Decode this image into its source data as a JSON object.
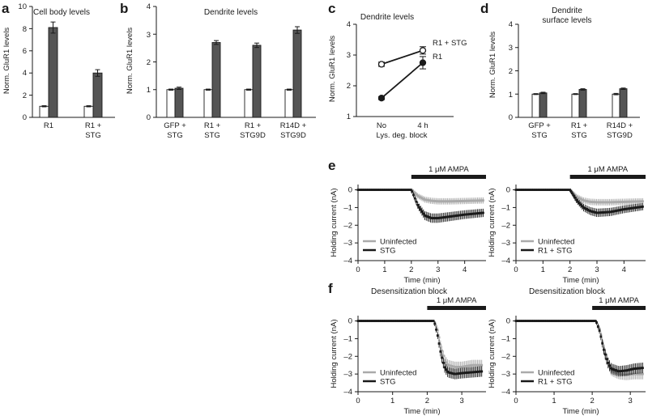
{
  "colors": {
    "dark": "#555555",
    "black": "#1a1a1a",
    "gray": "#aaaaaa",
    "white": "#ffffff"
  },
  "panels": {
    "a": {
      "letter": "a",
      "title": "Cell body levels",
      "ylabel": "Norm. GluR1 levels",
      "yticks": [
        "0",
        "2",
        "4",
        "6",
        "8",
        "10"
      ]
    },
    "b": {
      "letter": "b",
      "title": "Dendrite levels",
      "ylabel": "Norm. GluR1 levels",
      "yticks": [
        "0",
        "1",
        "2",
        "3",
        "4"
      ]
    },
    "c": {
      "letter": "c",
      "title": "Dendrite levels",
      "ylabel": "Norm. GluR1 levels",
      "yticks": [
        "1",
        "2",
        "3",
        "4"
      ],
      "xlabel": "Lys. deg. block"
    },
    "d": {
      "letter": "d",
      "title1": "Dendrite",
      "title2": "surface levels",
      "ylabel": "Norm. GluR1 levels",
      "yticks": [
        "0",
        "1",
        "2",
        "3",
        "4"
      ]
    },
    "e": {
      "letter": "e",
      "bar_label": "1 μM AMPA",
      "ylabel": "Holding current (nA)",
      "xlabel": "Time (min)",
      "yticks": [
        "0",
        "–1",
        "–2",
        "–3",
        "–4"
      ],
      "xticks": [
        "0",
        "1",
        "2",
        "3",
        "4"
      ]
    },
    "f": {
      "letter": "f",
      "title": "Desensitization block",
      "bar_label": "1 μM AMPA",
      "ylabel": "Holding current (nA)",
      "xlabel": "Time (min)",
      "yticks": [
        "0",
        "–1",
        "–2",
        "–3",
        "–4"
      ],
      "xticks": [
        "0",
        "1",
        "2",
        "3"
      ]
    }
  },
  "chart_data": [
    {
      "panel": "a",
      "type": "bar",
      "title": "Cell body levels",
      "ylabel": "Norm. GluR1 levels",
      "ylim": [
        0,
        10
      ],
      "categories": [
        [
          "R1"
        ],
        [
          "R1 +",
          "STG"
        ]
      ],
      "series": [
        {
          "values": [
            1.0,
            1.0
          ],
          "errors": [
            0.05,
            0.05
          ]
        },
        {
          "values": [
            8.1,
            4.0
          ],
          "errors": [
            0.5,
            0.3
          ]
        }
      ]
    },
    {
      "panel": "b",
      "type": "bar",
      "title": "Dendrite levels",
      "ylabel": "Norm. GluR1 levels",
      "ylim": [
        0,
        4
      ],
      "categories": [
        [
          "GFP +",
          "STG"
        ],
        [
          "R1 +",
          "STG"
        ],
        [
          "R1 +",
          "STG9D"
        ],
        [
          "R14D +",
          "STG9D"
        ]
      ],
      "series": [
        {
          "values": [
            1.0,
            1.0,
            1.0,
            1.0
          ],
          "errors": [
            0.02,
            0.02,
            0.02,
            0.02
          ]
        },
        {
          "values": [
            1.05,
            2.7,
            2.6,
            3.15
          ],
          "errors": [
            0.04,
            0.07,
            0.08,
            0.12
          ]
        }
      ]
    },
    {
      "panel": "c",
      "type": "line",
      "title": "Dendrite levels",
      "ylabel": "Norm. GluR1 levels",
      "xlabel": "Lys. deg. block",
      "ylim": [
        1,
        4
      ],
      "categories": [
        "No",
        "4 h"
      ],
      "series": [
        {
          "name": "R1 + STG",
          "values": [
            2.7,
            3.15
          ],
          "errors": [
            0.07,
            0.12
          ]
        },
        {
          "name": "R1",
          "values": [
            1.6,
            2.75
          ],
          "errors": [
            0.05,
            0.2
          ]
        }
      ]
    },
    {
      "panel": "d",
      "type": "bar",
      "title": "Dendrite surface levels",
      "ylabel": "Norm. GluR1 levels",
      "ylim": [
        0,
        4
      ],
      "categories": [
        [
          "GFP +",
          "STG"
        ],
        [
          "R1 +",
          "STG"
        ],
        [
          "R14D +",
          "STG9D"
        ]
      ],
      "series": [
        {
          "values": [
            1.0,
            1.0,
            1.0
          ],
          "errors": [
            0.02,
            0.02,
            0.03
          ]
        },
        {
          "values": [
            1.05,
            1.2,
            1.23
          ],
          "errors": [
            0.03,
            0.03,
            0.03
          ]
        }
      ]
    },
    {
      "panel": "e-left",
      "type": "scatter",
      "xlabel": "Time (min)",
      "ylabel": "Holding current (nA)",
      "xlim": [
        0,
        4.8
      ],
      "ylim": [
        -4,
        0.3
      ],
      "ampa_start": 2.0,
      "ampa_end": 4.8,
      "series": [
        {
          "name": "Uninfected",
          "x": [
            0,
            2.0,
            2.25,
            2.5,
            2.75,
            3.0,
            3.5,
            4.0,
            4.7
          ],
          "y": [
            0,
            0,
            -0.35,
            -0.55,
            -0.62,
            -0.65,
            -0.65,
            -0.63,
            -0.6
          ]
        },
        {
          "name": "STG",
          "x": [
            0,
            2.0,
            2.25,
            2.5,
            2.75,
            3.0,
            3.5,
            4.0,
            4.7
          ],
          "y": [
            0,
            0,
            -0.9,
            -1.45,
            -1.6,
            -1.6,
            -1.5,
            -1.4,
            -1.3
          ]
        }
      ]
    },
    {
      "panel": "e-right",
      "type": "scatter",
      "xlabel": "Time (min)",
      "ylabel": "Holding current (nA)",
      "xlim": [
        0,
        4.8
      ],
      "ylim": [
        -4,
        0.3
      ],
      "ampa_start": 2.0,
      "ampa_end": 4.8,
      "series": [
        {
          "name": "Uninfected",
          "x": [
            0,
            2.0,
            2.25,
            2.5,
            2.75,
            3.0,
            3.5,
            4.0,
            4.7
          ],
          "y": [
            0,
            0,
            -0.4,
            -0.6,
            -0.68,
            -0.7,
            -0.7,
            -0.68,
            -0.65
          ]
        },
        {
          "name": "R1 + STG",
          "x": [
            0,
            2.0,
            2.25,
            2.5,
            2.75,
            3.0,
            3.5,
            4.0,
            4.7
          ],
          "y": [
            0,
            0,
            -0.6,
            -1.0,
            -1.2,
            -1.3,
            -1.25,
            -1.1,
            -0.95
          ]
        }
      ]
    },
    {
      "panel": "f-left",
      "type": "scatter",
      "title": "Desensitization block",
      "xlabel": "Time (min)",
      "ylabel": "Holding current (nA)",
      "xlim": [
        0,
        3.7
      ],
      "ylim": [
        -4,
        0.3
      ],
      "ampa_start": 2.0,
      "ampa_end": 3.7,
      "series": [
        {
          "name": "Uninfected",
          "x": [
            0,
            2.2,
            2.3,
            2.4,
            2.5,
            2.6,
            2.8,
            3.0,
            3.3,
            3.6
          ],
          "y": [
            0,
            0,
            -0.5,
            -1.5,
            -2.2,
            -2.5,
            -2.6,
            -2.6,
            -2.5,
            -2.5
          ]
        },
        {
          "name": "STG",
          "x": [
            0,
            2.2,
            2.3,
            2.4,
            2.5,
            2.6,
            2.8,
            3.0,
            3.3,
            3.6
          ],
          "y": [
            0,
            0,
            -0.8,
            -1.9,
            -2.6,
            -2.9,
            -3.0,
            -2.95,
            -2.9,
            -2.85
          ]
        }
      ]
    },
    {
      "panel": "f-right",
      "type": "scatter",
      "title": "Desensitization block",
      "xlabel": "Time (min)",
      "ylabel": "Holding current (nA)",
      "xlim": [
        0,
        3.4
      ],
      "ylim": [
        -4,
        0.3
      ],
      "ampa_start": 2.0,
      "ampa_end": 3.4,
      "series": [
        {
          "name": "Uninfected",
          "x": [
            0,
            2.1,
            2.2,
            2.3,
            2.4,
            2.5,
            2.7,
            2.9,
            3.1,
            3.35
          ],
          "y": [
            0,
            0,
            -0.5,
            -1.5,
            -2.3,
            -2.8,
            -3.0,
            -3.05,
            -3.0,
            -3.0
          ]
        },
        {
          "name": "R1 + STG",
          "x": [
            0,
            2.1,
            2.2,
            2.3,
            2.4,
            2.5,
            2.7,
            2.9,
            3.1,
            3.35
          ],
          "y": [
            0,
            0,
            -0.6,
            -1.6,
            -2.3,
            -2.7,
            -2.85,
            -2.8,
            -2.7,
            -2.65
          ]
        }
      ]
    }
  ]
}
